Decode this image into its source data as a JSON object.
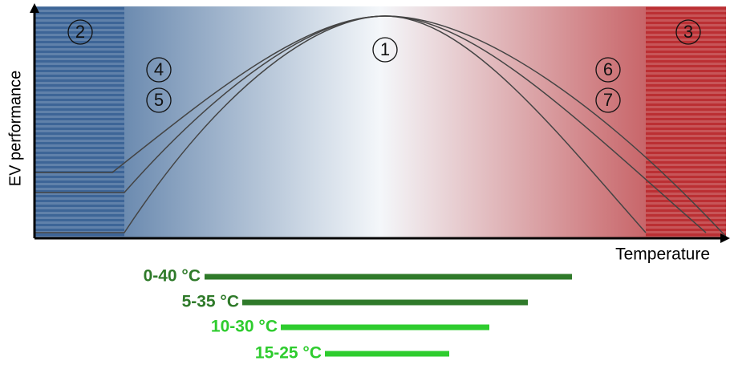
{
  "axes": {
    "y_label": "EV performance",
    "x_label": "Temperature"
  },
  "markers": [
    "1",
    "2",
    "3",
    "4",
    "5",
    "6",
    "7"
  ],
  "ranges": [
    "0-40 °C",
    "5-35 °C",
    "10-30 °C",
    "15-25 °C"
  ]
}
